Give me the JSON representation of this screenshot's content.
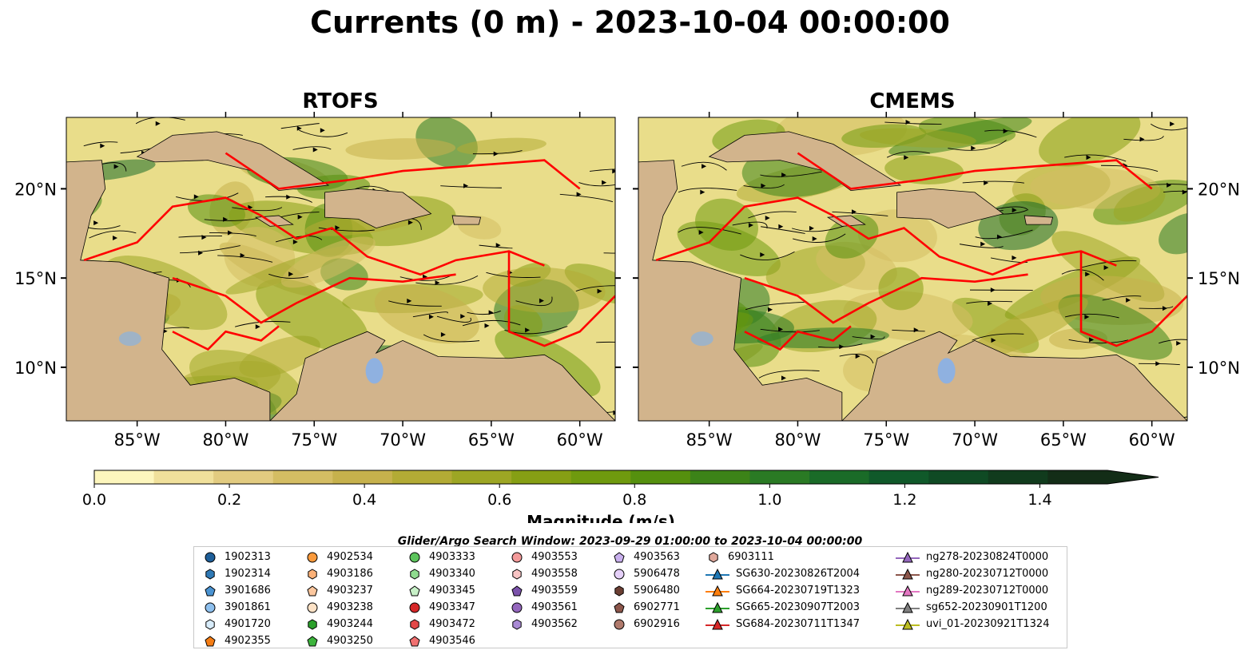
{
  "figure": {
    "title": "Currents (0 m) - 2023-10-04 00:00:00"
  },
  "panels": [
    {
      "title": "RTOFS"
    },
    {
      "title": "CMEMS"
    }
  ],
  "map": {
    "lon_range": [
      -89,
      -58
    ],
    "lat_range": [
      7,
      24
    ],
    "lon_ticks": [
      "85°W",
      "80°W",
      "75°W",
      "70°W",
      "65°W",
      "60°W"
    ],
    "lat_ticks": [
      "20°N",
      "15°N",
      "10°N"
    ],
    "land_color": "#d2b48c",
    "boundary_color": "#ff0000",
    "lake_color": "#8fb1e0"
  },
  "colorbar": {
    "label": "Magnitude (m/s)",
    "ticks": [
      "0.0",
      "0.2",
      "0.4",
      "0.6",
      "0.8",
      "1.0",
      "1.2",
      "1.4"
    ],
    "range": [
      0,
      1.5
    ],
    "extend": "max",
    "colors": [
      "#fdf6bd",
      "#f0e09b",
      "#e2cb80",
      "#d4bd63",
      "#c6b14c",
      "#b3ab35",
      "#9da624",
      "#869f14",
      "#6f9a0e",
      "#55900e",
      "#3c8318",
      "#2a7a24",
      "#1a6b28",
      "#10592a",
      "#0f4a24",
      "#113b1d",
      "#132d17"
    ]
  },
  "legend": {
    "title": "Glider/Argo Search Window: 2023-09-29 01:00:00 to 2023-10-04 00:00:00",
    "columns": [
      [
        {
          "label": "1902313",
          "marker": "circle",
          "color": "#1f5f99"
        },
        {
          "label": "1902314",
          "marker": "hexagon",
          "color": "#2f79b5"
        },
        {
          "label": "3901686",
          "marker": "pentagon",
          "color": "#4a93d2"
        },
        {
          "label": "3901861",
          "marker": "circle",
          "color": "#8ec0ee"
        },
        {
          "label": "4901720",
          "marker": "hexagon",
          "color": "#d8ecfa"
        },
        {
          "label": "4902355",
          "marker": "pentagon",
          "color": "#f57d14"
        }
      ],
      [
        {
          "label": "4902534",
          "marker": "circle",
          "color": "#fa9a3c"
        },
        {
          "label": "4903186",
          "marker": "hexagon",
          "color": "#fbb178"
        },
        {
          "label": "4903237",
          "marker": "pentagon",
          "color": "#fcc79e"
        },
        {
          "label": "4903238",
          "marker": "circle",
          "color": "#fde2c6"
        },
        {
          "label": "4903244",
          "marker": "hexagon",
          "color": "#2ca02c"
        },
        {
          "label": "4903250",
          "marker": "pentagon",
          "color": "#3cb43c"
        }
      ],
      [
        {
          "label": "4903333",
          "marker": "circle",
          "color": "#5cc45c"
        },
        {
          "label": "4903340",
          "marker": "hexagon",
          "color": "#8fdb8f"
        },
        {
          "label": "4903345",
          "marker": "pentagon",
          "color": "#c7f0c7"
        },
        {
          "label": "4903347",
          "marker": "circle",
          "color": "#d62728"
        },
        {
          "label": "4903472",
          "marker": "hexagon",
          "color": "#e34848"
        },
        {
          "label": "4903546",
          "marker": "pentagon",
          "color": "#f07070"
        }
      ],
      [
        {
          "label": "4903553",
          "marker": "circle",
          "color": "#f39a9a"
        },
        {
          "label": "4903558",
          "marker": "hexagon",
          "color": "#f8c4c4"
        },
        {
          "label": "4903559",
          "marker": "pentagon",
          "color": "#7b52ab"
        },
        {
          "label": "4903561",
          "marker": "circle",
          "color": "#9467bd"
        },
        {
          "label": "4903562",
          "marker": "hexagon",
          "color": "#a98ad4"
        }
      ],
      [
        {
          "label": "4903563",
          "marker": "pentagon",
          "color": "#c9b0ee"
        },
        {
          "label": "5906478",
          "marker": "circle",
          "color": "#e5d0f8"
        },
        {
          "label": "5906480",
          "marker": "hexagon",
          "color": "#6b3f33"
        },
        {
          "label": "6902771",
          "marker": "pentagon",
          "color": "#8c564b"
        },
        {
          "label": "6902916",
          "marker": "circle",
          "color": "#b07a6c"
        }
      ],
      [
        {
          "label": "6903111",
          "marker": "hexagon",
          "color": "#e0a89b"
        },
        {
          "label": "SG630-20230826T2004",
          "marker": "triangle-line",
          "color": "#1f77b4"
        },
        {
          "label": "SG664-20230719T1323",
          "marker": "triangle-line",
          "color": "#ff7f0e"
        },
        {
          "label": "SG665-20230907T2003",
          "marker": "triangle-line",
          "color": "#2ca02c"
        },
        {
          "label": "SG684-20230711T1347",
          "marker": "triangle-line",
          "color": "#d62728"
        }
      ],
      [
        {
          "label": "ng278-20230824T0000",
          "marker": "triangle-line",
          "color": "#9467bd"
        },
        {
          "label": "ng280-20230712T0000",
          "marker": "triangle-line",
          "color": "#8c564b"
        },
        {
          "label": "ng289-20230712T0000",
          "marker": "triangle-line",
          "color": "#e377c2"
        },
        {
          "label": "sg652-20230901T1200",
          "marker": "triangle-line",
          "color": "#7f7f7f"
        },
        {
          "label": "uvi_01-20230921T1324",
          "marker": "triangle-line",
          "color": "#bcbd22"
        }
      ]
    ]
  }
}
